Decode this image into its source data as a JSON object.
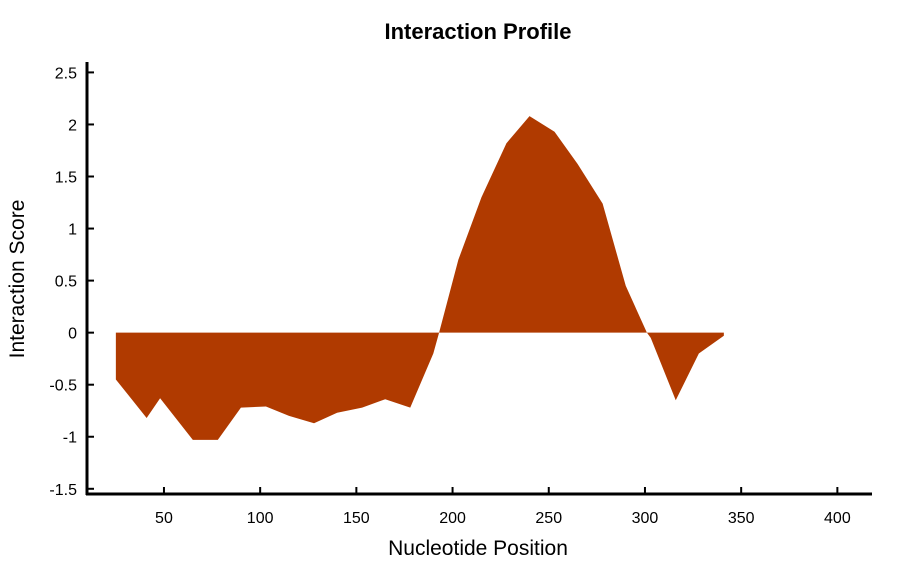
{
  "chart_data": {
    "type": "area",
    "title": "Interaction Profile",
    "xlabel": "Nucleotide Position",
    "ylabel": "Interaction Score",
    "xlim": [
      10,
      418
    ],
    "ylim": [
      -1.55,
      2.6
    ],
    "x_ticks": [
      50,
      100,
      150,
      200,
      250,
      300,
      350,
      400
    ],
    "y_ticks": [
      -1.5,
      -1,
      -0.5,
      0,
      0.5,
      1,
      1.5,
      2,
      2.5
    ],
    "x_tick_labels": [
      "50",
      "100",
      "150",
      "200",
      "250",
      "300",
      "350",
      "400"
    ],
    "y_tick_labels": [
      "-1.5",
      "-1",
      "-0.5",
      "0",
      "0.5",
      "1",
      "1.5",
      "2",
      "2.5"
    ],
    "fill_color": "#b03a00",
    "baseline": 0,
    "grid": false,
    "legend": "none",
    "series": [
      {
        "x": [
          25,
          41,
          48,
          65,
          78,
          90,
          103,
          115,
          128,
          140,
          153,
          165,
          178,
          190,
          193,
          203,
          215,
          228,
          240,
          253,
          265,
          278,
          290,
          301,
          303,
          316,
          328,
          341
        ],
        "y": [
          -0.45,
          -0.82,
          -0.63,
          -1.03,
          -1.03,
          -0.72,
          -0.71,
          -0.8,
          -0.87,
          -0.77,
          -0.72,
          -0.64,
          -0.72,
          -0.2,
          0,
          0.7,
          1.3,
          1.82,
          2.08,
          1.93,
          1.62,
          1.24,
          0.45,
          0,
          -0.05,
          -0.65,
          -0.2,
          -0.03
        ]
      }
    ]
  }
}
